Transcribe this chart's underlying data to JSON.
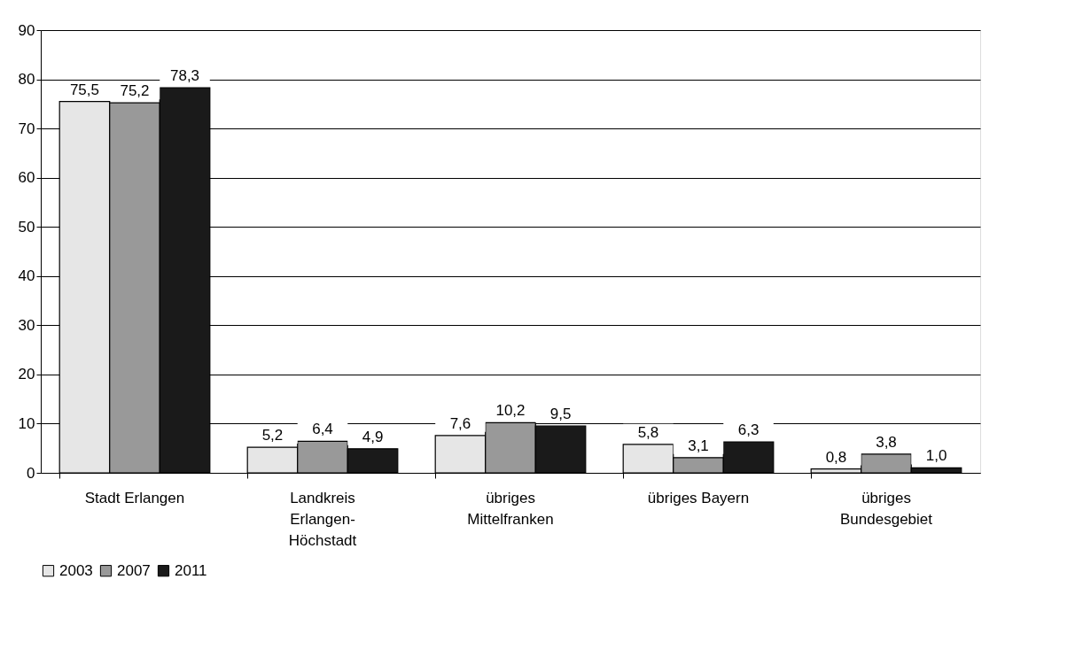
{
  "chart_data": {
    "type": "bar",
    "categories": [
      "Stadt Erlangen",
      "Landkreis\nErlangen-\nHöchstadt",
      "übriges\nMittelfranken",
      "übriges Bayern",
      "übriges\nBundesgebiet"
    ],
    "series": [
      {
        "name": "2003",
        "color": "#e6e6e6",
        "values": [
          75.5,
          5.2,
          7.6,
          5.8,
          0.8
        ],
        "value_labels": [
          "75,5",
          "5,2",
          "7,6",
          "5,8",
          "0,8"
        ]
      },
      {
        "name": "2007",
        "color": "#999999",
        "values": [
          75.2,
          6.4,
          10.2,
          3.1,
          3.8
        ],
        "value_labels": [
          "75,2",
          "6,4",
          "10,2",
          "3,1",
          "3,8"
        ]
      },
      {
        "name": "2011",
        "color": "#1a1a1a",
        "values": [
          78.3,
          4.9,
          9.5,
          6.3,
          1.0
        ],
        "value_labels": [
          "78,3",
          "4,9",
          "9,5",
          "6,3",
          "1,0"
        ]
      }
    ],
    "ylim": [
      0,
      90
    ],
    "yticks": [
      0,
      10,
      20,
      30,
      40,
      50,
      60,
      70,
      80,
      90
    ],
    "grid": "y",
    "legend": "bottom"
  }
}
